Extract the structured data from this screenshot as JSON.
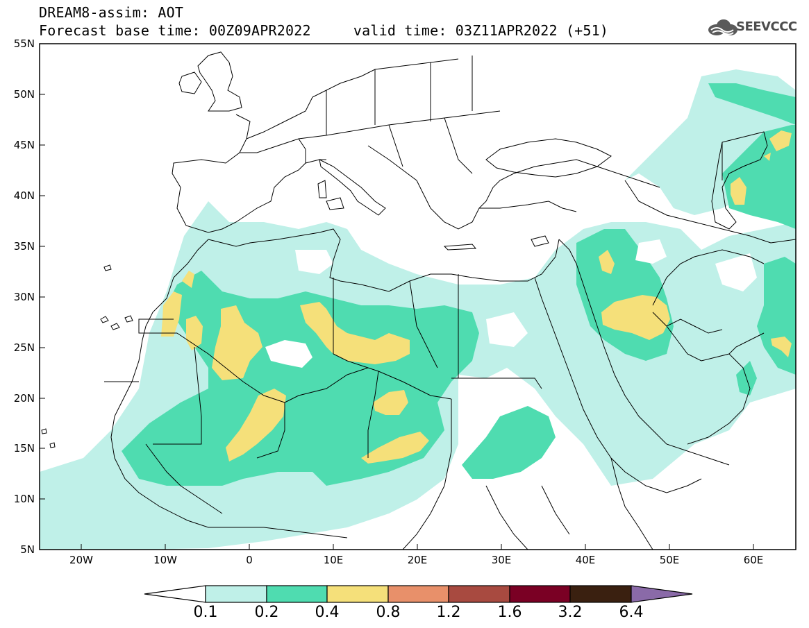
{
  "header": {
    "line1": "DREAM8-assim: AOT",
    "line2": "Forecast base time: 00Z09APR2022     valid time: 03Z11APR2022 (+51)"
  },
  "logo": {
    "name": "cloud-icon",
    "text": "SEEVCCC"
  },
  "map": {
    "variable": "AOT",
    "model": "DREAM8-assim",
    "lat_labels": [
      "55N",
      "50N",
      "45N",
      "40N",
      "35N",
      "30N",
      "25N",
      "20N",
      "15N",
      "10N",
      "5N"
    ],
    "lon_labels": [
      "20W",
      "10W",
      "0",
      "10E",
      "20E",
      "30E",
      "40E",
      "50E",
      "60E"
    ],
    "extent": {
      "lon": [
        -25,
        65
      ],
      "lat": [
        5,
        55
      ]
    }
  },
  "colorbar": {
    "levels": [
      "0.1",
      "0.2",
      "0.4",
      "0.8",
      "1.2",
      "1.6",
      "3.2",
      "6.4"
    ],
    "colors": [
      "#ffffff",
      "#bff0e8",
      "#4fdcb0",
      "#f5e07a",
      "#e8906a",
      "#a84a40",
      "#7a0024",
      "#3a2010",
      "#8a6aa8"
    ]
  }
}
